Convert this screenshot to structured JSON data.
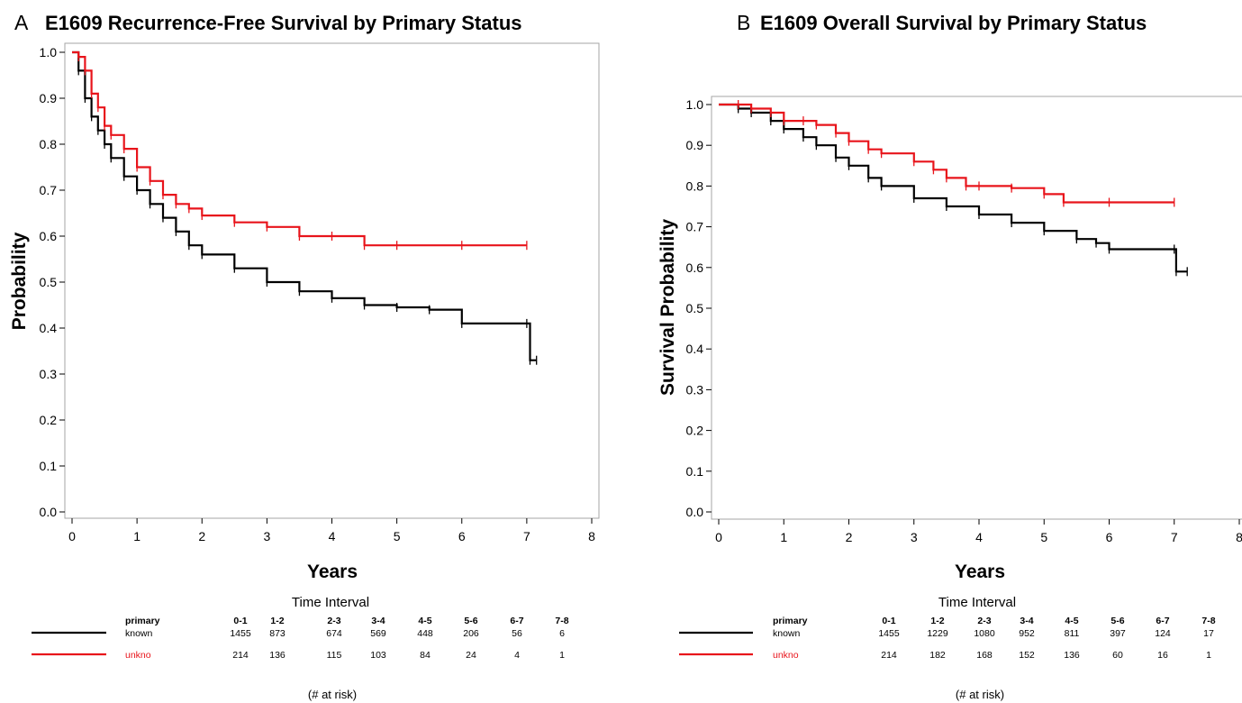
{
  "chart_data": [
    {
      "type": "line",
      "panel_letter": "A",
      "title": "E1609 Recurrence-Free Survival by Primary Status",
      "xlabel": "Years",
      "ylabel": "Probability",
      "xlim": [
        0,
        8
      ],
      "ylim": [
        0.0,
        1.0
      ],
      "x_ticks": [
        0,
        1,
        2,
        3,
        4,
        5,
        6,
        7,
        8
      ],
      "y_ticks": [
        0.0,
        0.1,
        0.2,
        0.3,
        0.4,
        0.5,
        0.6,
        0.7,
        0.8,
        0.9,
        1.0
      ],
      "grid": false,
      "series": [
        {
          "name": "known",
          "color": "#000000",
          "x": [
            0,
            0.1,
            0.2,
            0.3,
            0.4,
            0.5,
            0.6,
            0.8,
            1.0,
            1.2,
            1.4,
            1.6,
            1.8,
            2.0,
            2.5,
            3.0,
            3.5,
            4.0,
            4.5,
            5.0,
            5.5,
            6.0,
            7.0,
            7.05,
            7.15
          ],
          "y": [
            1.0,
            0.96,
            0.9,
            0.86,
            0.83,
            0.8,
            0.77,
            0.73,
            0.7,
            0.67,
            0.64,
            0.61,
            0.58,
            0.56,
            0.53,
            0.5,
            0.48,
            0.465,
            0.45,
            0.445,
            0.44,
            0.41,
            0.41,
            0.33,
            0.33
          ]
        },
        {
          "name": "unkno",
          "color": "#e8141b",
          "x": [
            0,
            0.1,
            0.2,
            0.3,
            0.4,
            0.5,
            0.6,
            0.8,
            1.0,
            1.2,
            1.4,
            1.6,
            1.8,
            2.0,
            2.5,
            3.0,
            3.5,
            4.0,
            4.5,
            5.0,
            6.0,
            7.0
          ],
          "y": [
            1.0,
            0.99,
            0.96,
            0.91,
            0.88,
            0.84,
            0.82,
            0.79,
            0.75,
            0.72,
            0.69,
            0.67,
            0.66,
            0.645,
            0.63,
            0.62,
            0.6,
            0.6,
            0.58,
            0.58,
            0.58,
            0.58
          ]
        }
      ],
      "risk_table": {
        "header": "Time Interval",
        "label_header": "primary",
        "intervals": [
          "0-1",
          "1-2",
          "2-3",
          "3-4",
          "4-5",
          "5-6",
          "6-7",
          "7-8"
        ],
        "rows": [
          {
            "label": "known",
            "color": "#000000",
            "values": [
              "1455",
              "873",
              "674",
              "569",
              "448",
              "206",
              "56",
              "6"
            ]
          },
          {
            "label": "unkno",
            "color": "#e8141b",
            "values": [
              "214",
              "136",
              "115",
              "103",
              "84",
              "24",
              "4",
              "1"
            ]
          }
        ],
        "footer": "(# at risk)"
      }
    },
    {
      "type": "line",
      "panel_letter": "B",
      "title": "E1609 Overall Survival by Primary Status",
      "xlabel": "Years",
      "ylabel": "Survival Probability",
      "xlim": [
        0,
        8
      ],
      "ylim": [
        0.0,
        1.0
      ],
      "x_ticks": [
        0,
        1,
        2,
        3,
        4,
        5,
        6,
        7,
        8
      ],
      "y_ticks": [
        0.0,
        0.1,
        0.2,
        0.3,
        0.4,
        0.5,
        0.6,
        0.7,
        0.8,
        0.9,
        1.0
      ],
      "grid": false,
      "series": [
        {
          "name": "known",
          "color": "#000000",
          "x": [
            0,
            0.3,
            0.5,
            0.8,
            1.0,
            1.3,
            1.5,
            1.8,
            2.0,
            2.3,
            2.5,
            3.0,
            3.5,
            4.0,
            4.5,
            5.0,
            5.5,
            5.8,
            6.0,
            7.0,
            7.03,
            7.2
          ],
          "y": [
            1.0,
            0.99,
            0.98,
            0.96,
            0.94,
            0.92,
            0.9,
            0.87,
            0.85,
            0.82,
            0.8,
            0.77,
            0.75,
            0.73,
            0.71,
            0.69,
            0.67,
            0.66,
            0.645,
            0.645,
            0.59,
            0.59
          ]
        },
        {
          "name": "unkno",
          "color": "#e8141b",
          "x": [
            0,
            0.3,
            0.5,
            0.8,
            1.0,
            1.3,
            1.5,
            1.8,
            2.0,
            2.3,
            2.5,
            3.0,
            3.3,
            3.5,
            3.8,
            4.0,
            4.5,
            5.0,
            5.3,
            6.0,
            7.0
          ],
          "y": [
            1.0,
            1.0,
            0.99,
            0.98,
            0.96,
            0.96,
            0.95,
            0.93,
            0.91,
            0.89,
            0.88,
            0.86,
            0.84,
            0.82,
            0.8,
            0.8,
            0.795,
            0.78,
            0.76,
            0.76,
            0.76
          ]
        }
      ],
      "risk_table": {
        "header": "Time Interval",
        "label_header": "primary",
        "intervals": [
          "0-1",
          "1-2",
          "2-3",
          "3-4",
          "4-5",
          "5-6",
          "6-7",
          "7-8"
        ],
        "rows": [
          {
            "label": "known",
            "color": "#000000",
            "values": [
              "1455",
              "1229",
              "1080",
              "952",
              "811",
              "397",
              "124",
              "17"
            ]
          },
          {
            "label": "unkno",
            "color": "#e8141b",
            "values": [
              "214",
              "182",
              "168",
              "152",
              "136",
              "60",
              "16",
              "1"
            ]
          }
        ],
        "footer": "(# at risk)"
      }
    }
  ]
}
